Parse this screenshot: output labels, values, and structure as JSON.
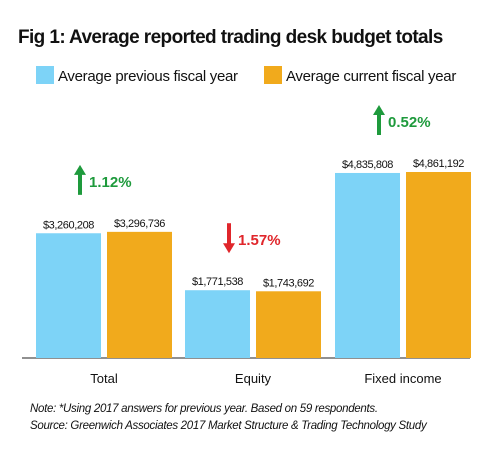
{
  "chart_data": {
    "type": "bar",
    "title": "Fig 1: Average reported trading desk budget totals",
    "categories": [
      "Total",
      "Equity",
      "Fixed income"
    ],
    "series": [
      {
        "name": "Average previous fiscal year",
        "color": "#7dd3f7",
        "values": [
          3260208,
          1771538,
          4835808
        ],
        "value_labels": [
          "$3,260,208",
          "$1,771,538",
          "$4,835,808"
        ]
      },
      {
        "name": "Average current fiscal year",
        "color": "#f1aa1c",
        "values": [
          3296736,
          1743692,
          4861192
        ],
        "value_labels": [
          "$3,296,736",
          "$1,743,692",
          "$4,861,192"
        ]
      }
    ],
    "annotations": [
      {
        "label": "1.12%",
        "direction": "up",
        "color": "#1e9a3c"
      },
      {
        "label": "1.57%",
        "direction": "down",
        "color": "#e0262b"
      },
      {
        "label": "0.52%",
        "direction": "up",
        "color": "#1e9a3c"
      }
    ],
    "notes": [
      "Note: *Using 2017 answers for previous year. Based on 59 respondents.",
      "Source: Greenwich Associates 2017 Market Structure & Trading Technology Study"
    ]
  }
}
